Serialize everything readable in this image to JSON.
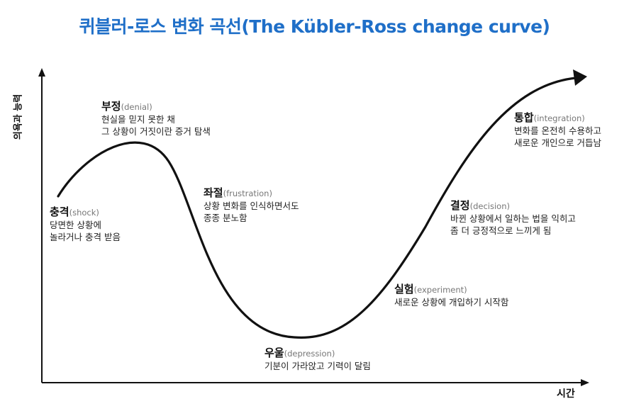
{
  "title": "퀴블러-로스 변화 곡선(The Kübler-Ross change curve)",
  "axes": {
    "ylabel": "의욕과 능력",
    "xlabel": "시간"
  },
  "colors": {
    "title": "#1f6fc8",
    "curve": "#111111",
    "axis": "#111111"
  },
  "stages": [
    {
      "id": "shock",
      "name": "충격",
      "en": "(shock)",
      "lines": [
        "당면한 상황에",
        "놀라거나 충격 받음"
      ]
    },
    {
      "id": "denial",
      "name": "부정",
      "en": "(denial)",
      "lines": [
        "현실을 믿지 못한 채",
        "그 상황이 거짓이란 증거 탐색"
      ]
    },
    {
      "id": "frustration",
      "name": "좌절",
      "en": "(frustration)",
      "lines": [
        "상황 변화를 인식하면서도",
        "종종 분노함"
      ]
    },
    {
      "id": "depression",
      "name": "우울",
      "en": "(depression)",
      "lines": [
        "기분이 가라앉고 기력이 달림"
      ]
    },
    {
      "id": "experiment",
      "name": "실험",
      "en": "(experiment)",
      "lines": [
        "새로운 상황에 개입하기 시작함"
      ]
    },
    {
      "id": "decision",
      "name": "결정",
      "en": "(decision)",
      "lines": [
        "바뀐 상황에서 일하는 법을 익히고",
        "좀 더 긍정적으로 느끼게 됨"
      ]
    },
    {
      "id": "integration",
      "name": "통합",
      "en": "(integration)",
      "lines": [
        "변화를 온전히 수용하고",
        "새로운 개인으로 거듭남"
      ]
    }
  ]
}
